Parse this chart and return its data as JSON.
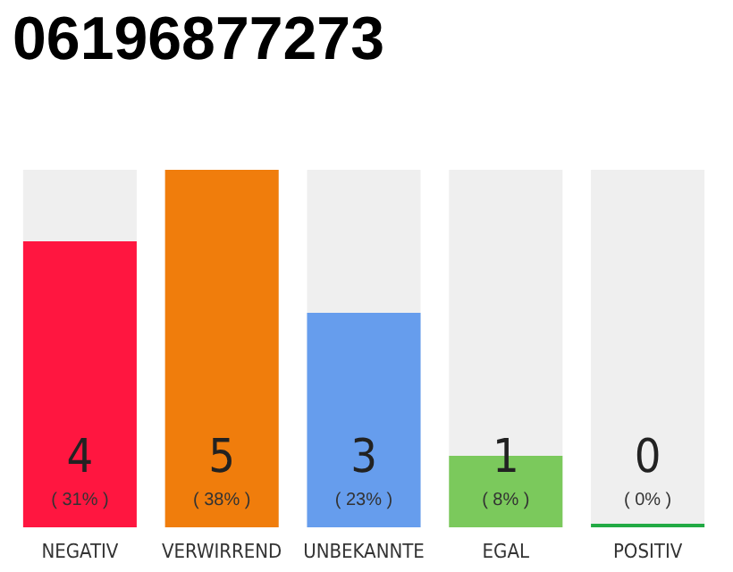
{
  "chart_data": {
    "type": "bar",
    "title": "06196877273",
    "categories": [
      "NEGATIV",
      "VERWIRREND",
      "UNBEKANNTE",
      "EGAL",
      "POSITIV"
    ],
    "values": [
      4,
      5,
      3,
      1,
      0
    ],
    "colors": [
      "#ff1640",
      "#f07d0c",
      "#669ded",
      "#7bc95c",
      "#22aa44"
    ],
    "value_labels": [
      "4\n( 31% )",
      "5\n( 38% )",
      "3\n( 23% )",
      "1\n( 8% )",
      "0\n( 0% )"
    ]
  }
}
